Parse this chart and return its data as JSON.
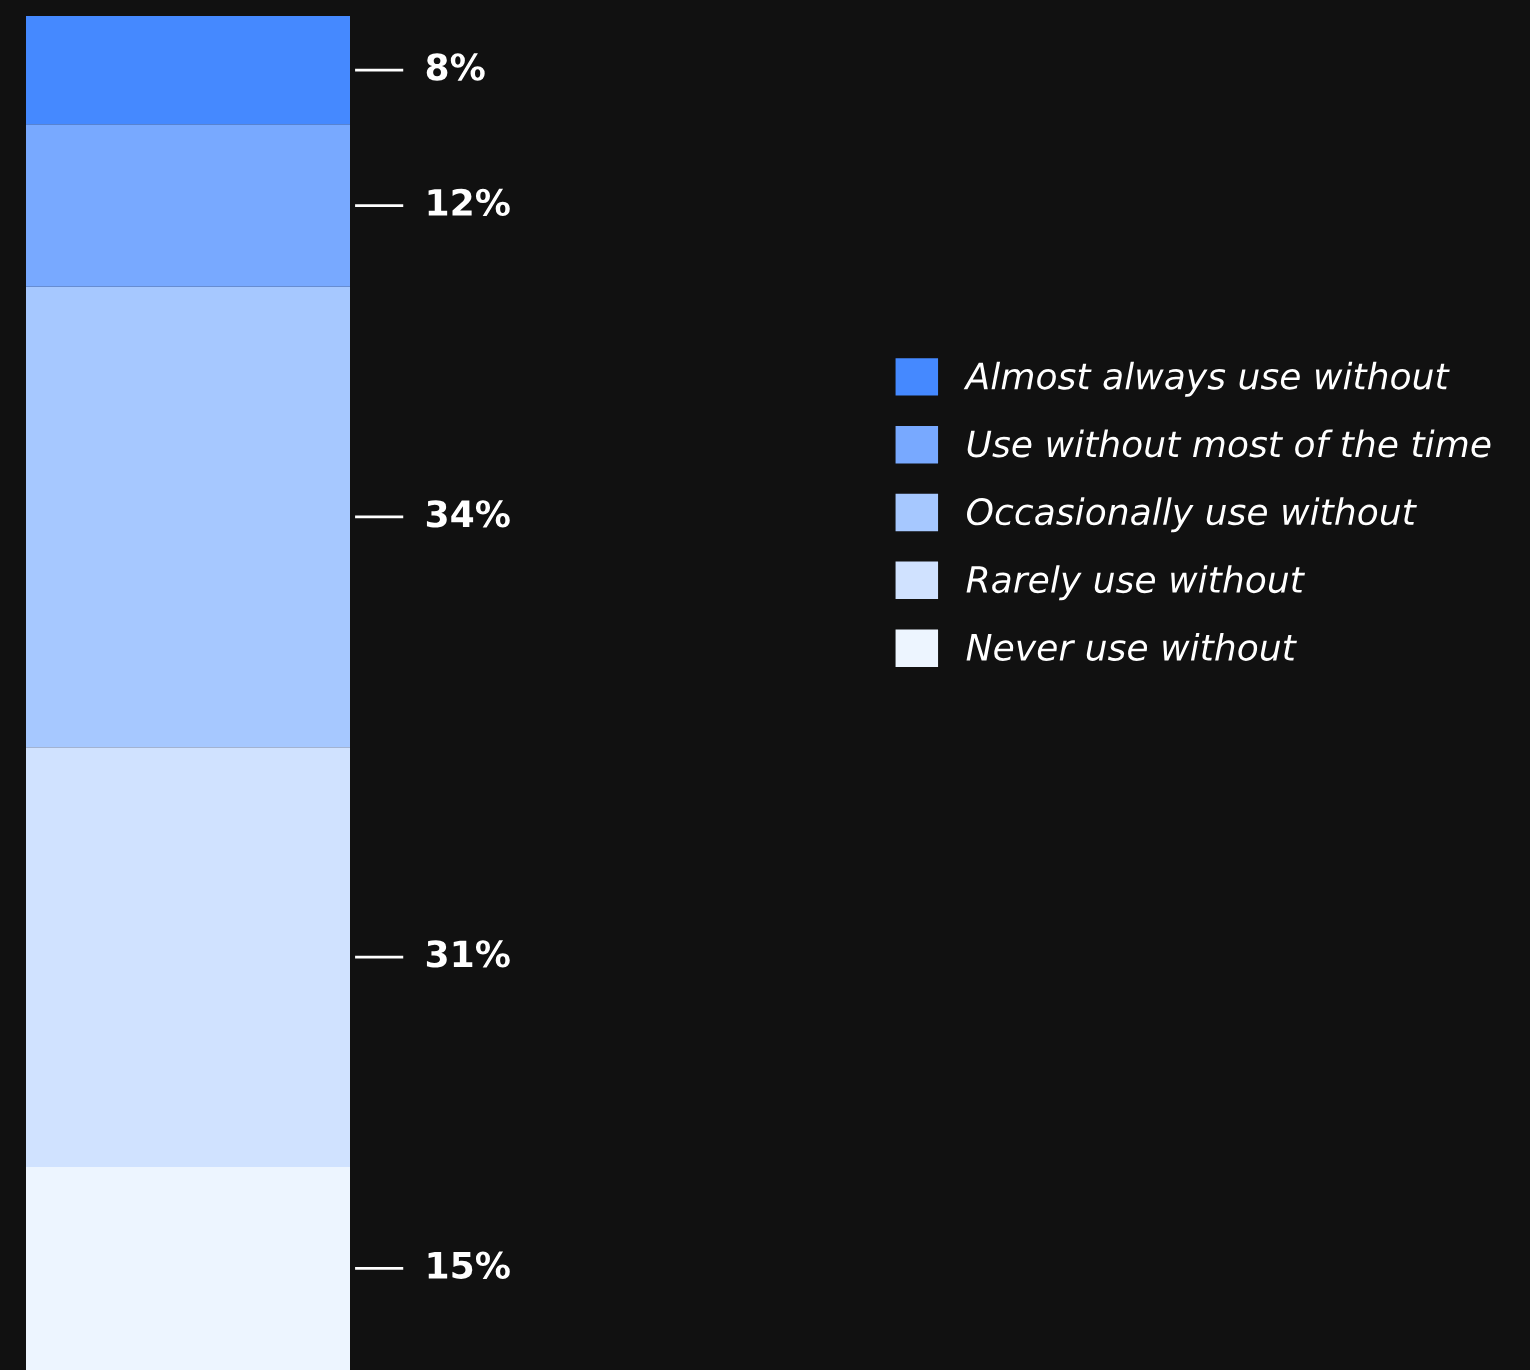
{
  "chart_data": {
    "type": "bar",
    "stacked": true,
    "categories": [
      null
    ],
    "legend": "right",
    "series": [
      {
        "name": "Never use without",
        "color": "#edf5ff",
        "values": [
          15
        ],
        "value_labels": [
          "15%"
        ]
      },
      {
        "name": "Rarely use without",
        "color": "#d0e2ff",
        "values": [
          31
        ],
        "value_labels": [
          "31%"
        ]
      },
      {
        "name": "Occasionally use without",
        "color": "#a6c8ff",
        "values": [
          34
        ],
        "value_labels": [
          "34%"
        ]
      },
      {
        "name": "Use without most of the time",
        "color": "#78a9ff",
        "values": [
          12
        ],
        "value_labels": [
          "12%"
        ]
      },
      {
        "name": "Almost always use without",
        "color": "#4589ff",
        "values": [
          8
        ],
        "value_labels": [
          "8%"
        ]
      }
    ]
  }
}
